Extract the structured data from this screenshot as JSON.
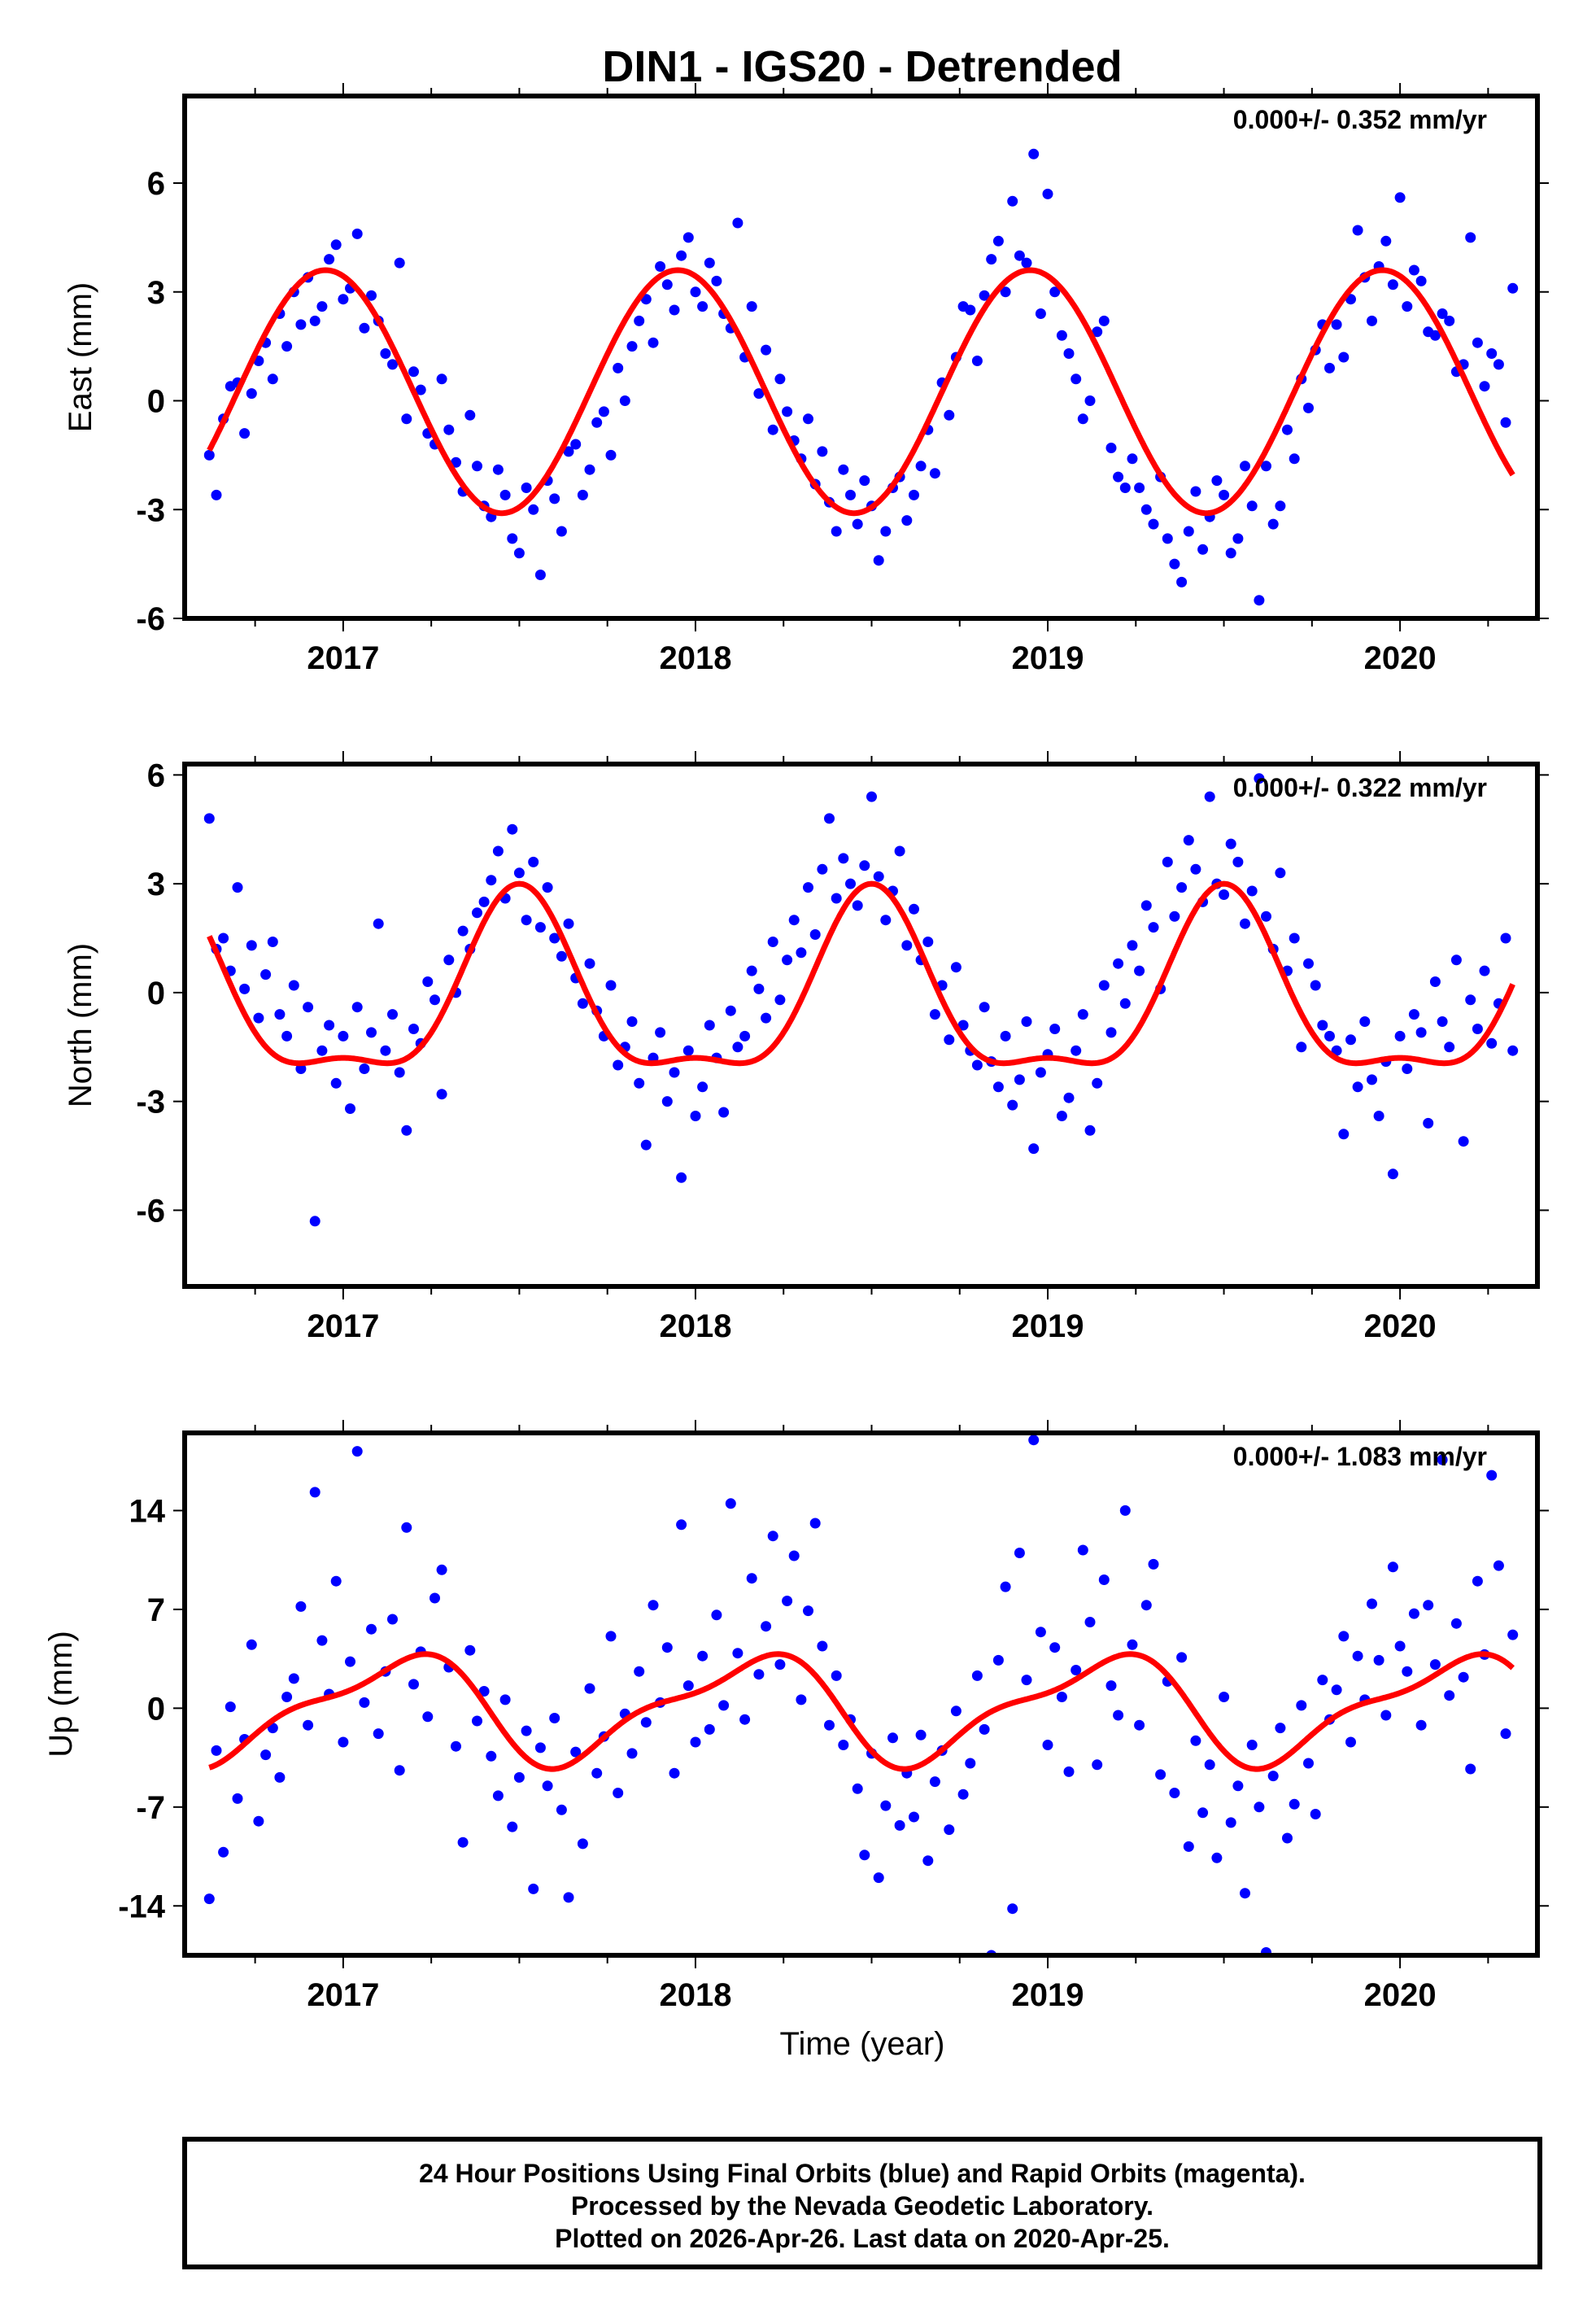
{
  "chart_data": {
    "type": "scatter",
    "title": "DIN1 - IGS20 - Detrended",
    "xlabel": "Time (year)",
    "xlim": [
      2016.55,
      2020.39
    ],
    "x_ticks": [
      "2017",
      "2018",
      "2019",
      "2020"
    ],
    "x_tick_values": [
      2017,
      2018,
      2019,
      2020
    ],
    "colors": {
      "points": "#0000ff",
      "model": "#ff0000",
      "frame": "#000000"
    },
    "panels": [
      {
        "name": "east",
        "ylabel": "East (mm)",
        "rate_label": "0.000+/- 0.352 mm/yr",
        "ylim": [
          -6,
          8.4
        ],
        "y_ticks": [
          "6",
          "3",
          "0",
          "-3",
          "-6"
        ],
        "y_tick_values": [
          6,
          3,
          0,
          -3,
          -6
        ],
        "t_start": 2016.62,
        "t_step": 0.02,
        "values": [
          -1.5,
          -2.6,
          -0.5,
          0.4,
          0.5,
          -0.9,
          0.2,
          1.1,
          1.6,
          0.6,
          2.4,
          1.5,
          3.0,
          2.1,
          3.4,
          2.2,
          2.6,
          3.9,
          4.3,
          2.8,
          3.1,
          4.6,
          2.0,
          2.9,
          2.2,
          1.3,
          1.0,
          3.8,
          -0.5,
          0.8,
          0.3,
          -0.9,
          -1.2,
          0.6,
          -0.8,
          -1.7,
          -2.5,
          -0.4,
          -1.8,
          -2.9,
          -3.2,
          -1.9,
          -2.6,
          -3.8,
          -4.2,
          -2.4,
          -3.0,
          -4.8,
          -2.2,
          -2.7,
          -3.6,
          -1.4,
          -1.2,
          -2.6,
          -1.9,
          -0.6,
          -0.3,
          -1.5,
          0.9,
          0.0,
          1.5,
          2.2,
          2.8,
          1.6,
          3.7,
          3.2,
          2.5,
          4.0,
          4.5,
          3.0,
          2.6,
          3.8,
          3.3,
          2.4,
          2.0,
          4.9,
          1.2,
          2.6,
          0.2,
          1.4,
          -0.8,
          0.6,
          -0.3,
          -1.1,
          -1.6,
          -0.5,
          -2.3,
          -1.4,
          -2.8,
          -3.6,
          -1.9,
          -2.6,
          -3.4,
          -2.2,
          -2.9,
          -4.4,
          -3.6,
          -2.4,
          -2.1,
          -3.3,
          -2.6,
          -1.8,
          -0.8,
          -2.0,
          0.5,
          -0.4,
          1.2,
          2.6,
          2.5,
          1.1,
          2.9,
          3.9,
          4.4,
          3.0,
          5.5,
          4.0,
          3.8,
          6.8,
          2.4,
          5.7,
          3.0,
          1.8,
          1.3,
          0.6,
          -0.5,
          0.0,
          1.9,
          2.2,
          -1.3,
          -2.1,
          -2.4,
          -1.6,
          -2.4,
          -3.0,
          -3.4,
          -2.1,
          -3.8,
          -4.5,
          -5.0,
          -3.6,
          -2.5,
          -4.1,
          -3.2,
          -2.2,
          -2.6,
          -4.2,
          -3.8,
          -1.8,
          -2.9,
          -5.5,
          -1.8,
          -3.4,
          -2.9,
          -0.8,
          -1.6,
          0.6,
          -0.2,
          1.4,
          2.1,
          0.9,
          2.1,
          1.2,
          2.8,
          4.7,
          3.4,
          2.2,
          3.7,
          4.4,
          3.2,
          5.6,
          2.6,
          3.6,
          3.3,
          1.9,
          1.8,
          2.4,
          2.2,
          0.8,
          1.0,
          4.5,
          1.6,
          0.4,
          1.3,
          1.0,
          -0.6,
          3.1
        ],
        "model": {
          "offset": 0.25,
          "annual_amplitude": 3.35,
          "annual_peak": 0.95,
          "semiannual_amplitude": 0.0,
          "semiannual_peak": 0.0,
          "t_range": [
            2016.62,
            2020.32
          ]
        }
      },
      {
        "name": "north",
        "ylabel": "North (mm)",
        "rate_label": "0.000+/- 0.322 mm/yr",
        "ylim": [
          -8.1,
          6.3
        ],
        "y_ticks": [
          "6",
          "3",
          "0",
          "-3",
          "-6"
        ],
        "y_tick_values": [
          6,
          3,
          0,
          -3,
          -6
        ],
        "t_start": 2016.62,
        "t_step": 0.02,
        "values": [
          4.8,
          1.2,
          1.5,
          0.6,
          2.9,
          0.1,
          1.3,
          -0.7,
          0.5,
          1.4,
          -0.6,
          -1.2,
          0.2,
          -2.1,
          -0.4,
          -6.3,
          -1.6,
          -0.9,
          -2.5,
          -1.2,
          -3.2,
          -0.4,
          -2.1,
          -1.1,
          1.9,
          -1.6,
          -0.6,
          -2.2,
          -3.8,
          -1.0,
          -1.4,
          0.3,
          -0.2,
          -2.8,
          0.9,
          0.0,
          1.7,
          1.2,
          2.2,
          2.5,
          3.1,
          3.9,
          2.6,
          4.5,
          3.3,
          2.0,
          3.6,
          1.8,
          2.9,
          1.5,
          1.0,
          1.9,
          0.4,
          -0.3,
          0.8,
          -0.5,
          -1.2,
          0.2,
          -2.0,
          -1.5,
          -0.8,
          -2.5,
          -4.2,
          -1.8,
          -1.1,
          -3.0,
          -2.2,
          -5.1,
          -1.6,
          -3.4,
          -2.6,
          -0.9,
          -1.8,
          -3.3,
          -0.5,
          -1.5,
          -1.2,
          0.6,
          0.1,
          -0.7,
          1.4,
          -0.2,
          0.9,
          2.0,
          1.1,
          2.9,
          1.6,
          3.4,
          4.8,
          2.6,
          3.7,
          3.0,
          2.4,
          3.5,
          5.4,
          3.2,
          2.0,
          2.8,
          3.9,
          1.3,
          2.3,
          0.9,
          1.4,
          -0.6,
          0.2,
          -1.3,
          0.7,
          -0.9,
          -1.6,
          -2.0,
          -0.4,
          -1.9,
          -2.6,
          -1.2,
          -3.1,
          -2.4,
          -0.8,
          -4.3,
          -2.2,
          -1.7,
          -1.0,
          -3.4,
          -2.9,
          -1.6,
          -0.6,
          -3.8,
          -2.5,
          0.2,
          -1.1,
          0.8,
          -0.3,
          1.3,
          0.6,
          2.4,
          1.8,
          0.1,
          3.6,
          2.1,
          2.9,
          4.2,
          3.4,
          2.5,
          5.4,
          3.0,
          2.7,
          4.1,
          3.6,
          1.9,
          2.8,
          5.9,
          2.1,
          1.2,
          3.3,
          0.6,
          1.5,
          -1.5,
          0.8,
          0.2,
          -0.9,
          -1.2,
          -1.6,
          -3.9,
          -1.3,
          -2.6,
          -0.8,
          -2.4,
          -3.4,
          -1.9,
          -5.0,
          -1.2,
          -2.1,
          -0.6,
          -1.1,
          -3.6,
          0.3,
          -0.8,
          -1.5,
          0.9,
          -4.1,
          -0.2,
          -1.0,
          0.6,
          -1.4,
          -0.3,
          1.5,
          -1.6
        ],
        "model": {
          "offset": -0.25,
          "annual_amplitude": 2.4,
          "annual_peak": 0.5,
          "semiannual_amplitude": 0.85,
          "semiannual_peak": 0.0,
          "t_range": [
            2016.62,
            2020.32
          ]
        }
      },
      {
        "name": "up",
        "ylabel": "Up (mm)",
        "rate_label": "0.000+/- 1.083 mm/yr",
        "ylim": [
          -17.5,
          19.5
        ],
        "y_ticks": [
          "14",
          "7",
          "0",
          "-7",
          "-14"
        ],
        "y_tick_values": [
          14,
          7,
          0,
          -7,
          -14
        ],
        "t_start": 2016.62,
        "t_step": 0.02,
        "values": [
          -13.5,
          -3.0,
          -10.2,
          0.1,
          -6.4,
          -2.2,
          4.5,
          -8.0,
          -3.3,
          -1.4,
          -4.9,
          0.8,
          2.1,
          7.2,
          -1.2,
          15.3,
          4.8,
          1.0,
          9.0,
          -2.4,
          3.3,
          18.2,
          0.4,
          5.6,
          -1.8,
          2.6,
          6.3,
          -4.4,
          12.8,
          1.7,
          4.0,
          -0.6,
          7.8,
          9.8,
          2.9,
          -2.7,
          -9.5,
          4.1,
          -0.9,
          1.2,
          -3.4,
          -6.2,
          0.6,
          -8.4,
          -4.9,
          -1.6,
          -12.8,
          -2.8,
          -5.5,
          -0.7,
          -7.2,
          -13.4,
          -3.1,
          -9.6,
          1.4,
          -4.6,
          -2.0,
          5.1,
          -6.0,
          -0.4,
          -3.2,
          2.6,
          -1.0,
          7.3,
          0.4,
          4.3,
          -4.6,
          13.0,
          1.6,
          -2.4,
          3.7,
          -1.5,
          6.6,
          0.2,
          14.5,
          3.9,
          -0.8,
          9.2,
          2.4,
          5.8,
          12.2,
          3.1,
          7.6,
          10.8,
          0.6,
          6.9,
          13.1,
          4.4,
          -1.2,
          2.3,
          -2.6,
          -0.8,
          -5.7,
          -10.4,
          -3.2,
          -12.0,
          -6.9,
          -2.1,
          -8.3,
          -4.6,
          -7.7,
          -1.9,
          -10.8,
          -5.2,
          -3.0,
          -8.6,
          -0.2,
          -6.1,
          -3.9,
          2.3,
          -1.5,
          -17.5,
          3.4,
          8.6,
          -14.2,
          11.0,
          2.0,
          19.0,
          5.4,
          -2.6,
          4.3,
          0.8,
          -4.5,
          2.7,
          11.2,
          6.1,
          -4.0,
          9.1,
          1.6,
          -0.5,
          14.0,
          4.5,
          -1.2,
          7.3,
          10.2,
          -4.7,
          1.9,
          -6.0,
          3.6,
          -9.8,
          -2.3,
          -7.4,
          -4.0,
          -10.6,
          0.8,
          -8.1,
          -5.5,
          -13.1,
          -2.6,
          -7.0,
          -17.3,
          -4.8,
          -1.4,
          -9.2,
          -6.8,
          0.2,
          -3.9,
          -7.5,
          2.0,
          -0.8,
          1.3,
          5.1,
          -2.4,
          3.7,
          0.6,
          7.4,
          3.4,
          -0.5,
          10.0,
          4.4,
          2.6,
          6.7,
          -1.2,
          7.3,
          3.1,
          17.6,
          0.9,
          6.0,
          2.2,
          -4.3,
          9.0,
          3.8,
          16.5,
          10.1,
          -1.8,
          5.2
        ],
        "model": {
          "offset": 0.0,
          "annual_amplitude": 3.5,
          "annual_peak": 0.15,
          "semiannual_amplitude": 1.2,
          "semiannual_peak": 0.3,
          "t_range": [
            2016.62,
            2020.32
          ]
        }
      }
    ],
    "footer": {
      "lines": [
        "24 Hour Positions Using Final Orbits (blue) and Rapid Orbits (magenta).",
        "Processed by the Nevada Geodetic Laboratory.",
        "Plotted on 2026-Apr-26. Last data on 2020-Apr-25."
      ]
    }
  }
}
